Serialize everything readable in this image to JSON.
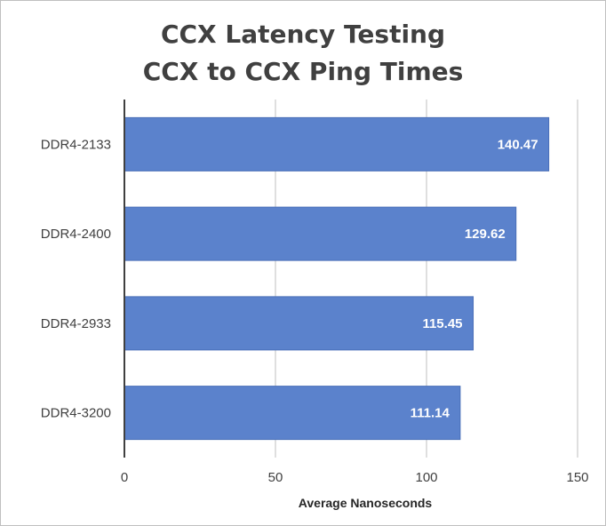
{
  "chart_data": {
    "type": "bar",
    "orientation": "horizontal",
    "title_lines": [
      "CCX Latency Testing",
      "CCX to CCX Ping Times"
    ],
    "categories": [
      "DDR4-2133",
      "DDR4-2400",
      "DDR4-2933",
      "DDR4-3200"
    ],
    "values": [
      140.47,
      129.62,
      115.45,
      111.14
    ],
    "value_labels": [
      "140.47",
      "129.62",
      "115.45",
      "111.14"
    ],
    "xlabel": "Average Nanoseconds",
    "ylabel": "",
    "xlim": [
      0,
      150
    ],
    "x_ticks": [
      "0",
      "50",
      "100",
      "150"
    ],
    "grid": true,
    "legend": "none",
    "colors": {
      "bar": "#5b82cc",
      "bar_edge": "#4a6fb8",
      "gridline": "#bfbfbf",
      "axis": "#404040",
      "title": "#404040"
    }
  }
}
